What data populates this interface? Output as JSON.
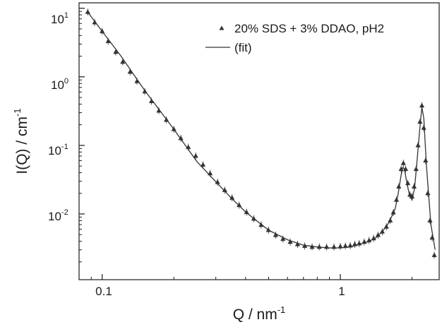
{
  "chart_data": {
    "type": "scatter",
    "xscale": "log",
    "yscale": "log",
    "xlim": [
      0.08,
      2.6
    ],
    "ylim": [
      0.0011,
      12
    ],
    "grid": false,
    "legend_position": "top-right",
    "xlabel": {
      "base": "Q / nm",
      "sup": "-1"
    },
    "ylabel": {
      "base": "I(Q) / cm",
      "sup": "-1"
    },
    "x_ticks": [
      {
        "value": 0.1,
        "label": "0.1"
      },
      {
        "value": 1,
        "label": "1"
      }
    ],
    "y_ticks": [
      {
        "value": 10,
        "base": "10",
        "sup": "1"
      },
      {
        "value": 1,
        "base": "10",
        "sup": "0"
      },
      {
        "value": 0.1,
        "base": "10",
        "sup": "-1"
      },
      {
        "value": 0.01,
        "base": "10",
        "sup": "-2"
      }
    ],
    "series": [
      {
        "name": "20% SDS + 3% DDAO, pH2",
        "kind": "markers",
        "marker": "triangle",
        "color": "#333333",
        "x": [
          0.087,
          0.093,
          0.1,
          0.106,
          0.114,
          0.122,
          0.131,
          0.14,
          0.151,
          0.161,
          0.173,
          0.186,
          0.2,
          0.214,
          0.23,
          0.247,
          0.265,
          0.284,
          0.305,
          0.327,
          0.351,
          0.376,
          0.404,
          0.433,
          0.465,
          0.499,
          0.535,
          0.574,
          0.616,
          0.661,
          0.709,
          0.761,
          0.816,
          0.876,
          0.94,
          1.0,
          1.05,
          1.1,
          1.15,
          1.2,
          1.26,
          1.32,
          1.38,
          1.44,
          1.5,
          1.56,
          1.62,
          1.67,
          1.72,
          1.76,
          1.8,
          1.84,
          1.88,
          1.92,
          1.96,
          2.0,
          2.04,
          2.08,
          2.12,
          2.16,
          2.2,
          2.24,
          2.28,
          2.33,
          2.38,
          2.43,
          2.48
        ],
        "y": [
          8.8,
          6.2,
          4.6,
          3.3,
          2.3,
          1.65,
          1.18,
          0.86,
          0.61,
          0.44,
          0.32,
          0.235,
          0.172,
          0.127,
          0.094,
          0.07,
          0.052,
          0.039,
          0.029,
          0.0222,
          0.0172,
          0.0134,
          0.0106,
          0.0085,
          0.0069,
          0.0058,
          0.0049,
          0.0043,
          0.0039,
          0.0036,
          0.0034,
          0.0033,
          0.0033,
          0.0033,
          0.0033,
          0.00335,
          0.0034,
          0.00345,
          0.0036,
          0.0037,
          0.0039,
          0.0041,
          0.0044,
          0.0049,
          0.0055,
          0.0065,
          0.008,
          0.0105,
          0.016,
          0.025,
          0.045,
          0.055,
          0.045,
          0.028,
          0.019,
          0.018,
          0.025,
          0.045,
          0.1,
          0.22,
          0.38,
          0.18,
          0.06,
          0.02,
          0.008,
          0.0045,
          0.0025
        ]
      },
      {
        "name": "(fit)",
        "kind": "line",
        "color": "#333333",
        "x": [
          0.087,
          0.1,
          0.12,
          0.15,
          0.2,
          0.25,
          0.3,
          0.35,
          0.4,
          0.5,
          0.6,
          0.7,
          0.8,
          0.9,
          1.0,
          1.1,
          1.2,
          1.3,
          1.4,
          1.5,
          1.6,
          1.7,
          1.75,
          1.8,
          1.83,
          1.86,
          1.9,
          1.95,
          2.0,
          2.05,
          2.1,
          2.15,
          2.2,
          2.24,
          2.3,
          2.4,
          2.5
        ],
        "y": [
          8.8,
          4.6,
          2.0,
          0.65,
          0.172,
          0.058,
          0.0295,
          0.0168,
          0.0107,
          0.0058,
          0.0042,
          0.0035,
          0.0033,
          0.0032,
          0.0032,
          0.0033,
          0.0036,
          0.0039,
          0.0044,
          0.0055,
          0.0075,
          0.012,
          0.02,
          0.037,
          0.048,
          0.045,
          0.029,
          0.019,
          0.016,
          0.024,
          0.06,
          0.16,
          0.36,
          0.25,
          0.05,
          0.007,
          0.003
        ]
      }
    ]
  }
}
